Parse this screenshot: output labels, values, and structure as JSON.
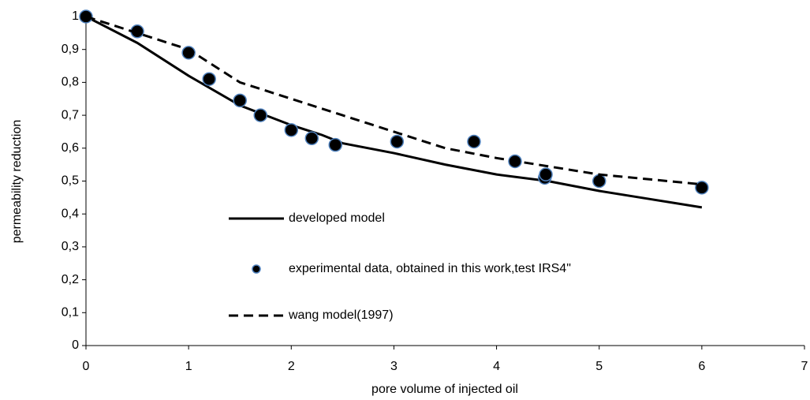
{
  "chart_data": {
    "type": "line",
    "x_label": "pore volume of injected oil",
    "y_label": "permeability reduction",
    "xlim": [
      0,
      7
    ],
    "xticks": [
      0,
      1,
      2,
      3,
      4,
      5,
      6,
      7
    ],
    "ylim": [
      0,
      1
    ],
    "yticks": [
      0,
      {
        "value": 0.1,
        "label": "0,1"
      },
      {
        "value": 0.2,
        "label": "0,2"
      },
      {
        "value": 0.3,
        "label": "0,3"
      },
      {
        "value": 0.4,
        "label": "0,4"
      },
      {
        "value": 0.5,
        "label": "0,5"
      },
      {
        "value": 0.6,
        "label": "0,6"
      },
      {
        "value": 0.7,
        "label": "0,7"
      },
      {
        "value": 0.8,
        "label": "0,8"
      },
      {
        "value": 0.9,
        "label": "0,9"
      },
      1
    ],
    "grid": false,
    "series": [
      {
        "name": "developed model",
        "mode": "solid",
        "color": "#000000",
        "x": [
          0,
          0.5,
          1,
          1.5,
          2,
          2.3,
          2.5,
          3,
          3.5,
          4,
          4.5,
          5,
          5.5,
          6
        ],
        "values": [
          1,
          0.92,
          0.82,
          0.73,
          0.67,
          0.64,
          0.615,
          0.585,
          0.55,
          0.52,
          0.5,
          0.47,
          0.445,
          0.42
        ]
      },
      {
        "name": "experimental data, obtained in this work,test IRS4\"",
        "mode": "markers",
        "color": "#000000",
        "edge_color": "#4f81bd",
        "x": [
          0,
          0.5,
          1,
          1.2,
          1.5,
          1.7,
          2,
          2.2,
          2.43,
          3.03,
          3.78,
          4.18,
          4.47,
          4.48,
          5,
          6
        ],
        "values": [
          1,
          0.955,
          0.89,
          0.81,
          0.745,
          0.7,
          0.655,
          0.63,
          0.61,
          0.62,
          0.62,
          0.56,
          0.51,
          0.52,
          0.5,
          0.48
        ]
      },
      {
        "name": "wang model(1997)",
        "mode": "dashed",
        "color": "#000000",
        "x": [
          0,
          1,
          1.5,
          2,
          2.5,
          3,
          3.5,
          4,
          4.5,
          5,
          5.5,
          6
        ],
        "values": [
          1,
          0.9,
          0.8,
          0.75,
          0.7,
          0.65,
          0.6,
          0.57,
          0.545,
          0.52,
          0.505,
          0.49
        ]
      }
    ]
  }
}
